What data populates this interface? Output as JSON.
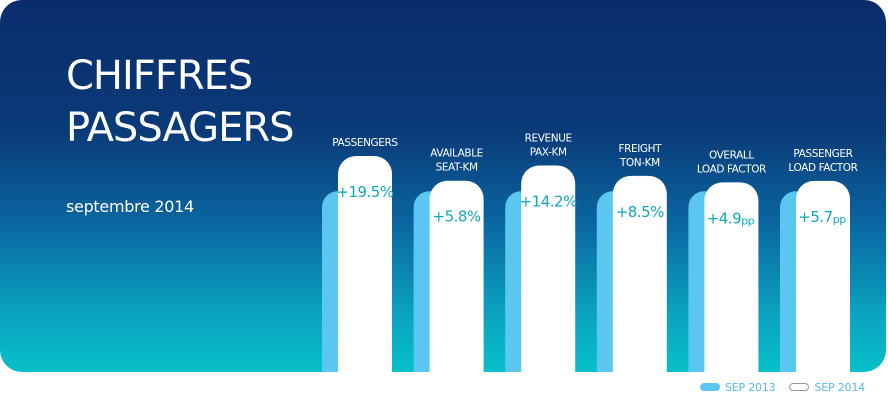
{
  "header": {
    "title_line1": "CHIFFRES",
    "title_line2": "PASSAGERS",
    "subtitle": "septembre 2014"
  },
  "legend": {
    "series_2013": "SEP 2013",
    "series_2014": "SEP 2014"
  },
  "colors": {
    "sep_2013": "#5bc7f0",
    "sep_2014": "#ffffff",
    "change_text": "#11a8b8",
    "label_text": "#ffffff"
  },
  "chart_data": {
    "type": "bar",
    "title": "CHIFFRES PASSAGERS",
    "subtitle": "septembre 2014",
    "categories": [
      [
        "PASSENGERS"
      ],
      [
        "AVAILABLE",
        "SEAT-KM"
      ],
      [
        "REVENUE",
        "PAX-KM"
      ],
      [
        "FREIGHT",
        "TON-KM"
      ],
      [
        "OVERALL",
        "LOAD FACTOR"
      ],
      [
        "PASSENGER",
        "LOAD FACTOR"
      ]
    ],
    "changes": [
      {
        "value": "+19.5%",
        "unit": ""
      },
      {
        "value": "+5.8%",
        "unit": ""
      },
      {
        "value": "+14.2%",
        "unit": ""
      },
      {
        "value": "+8.5%",
        "unit": ""
      },
      {
        "value": "+4.9",
        "unit": "pp"
      },
      {
        "value": "+5.7",
        "unit": "pp"
      }
    ],
    "series": [
      {
        "name": "SEP 2013",
        "values": [
          100,
          100,
          100,
          100,
          100,
          100
        ]
      },
      {
        "name": "SEP 2014",
        "values": [
          119.5,
          105.8,
          114.2,
          108.5,
          104.9,
          105.7
        ]
      }
    ],
    "ylim": [
      0,
      125
    ],
    "legend_position": "bottom-right",
    "grid": false
  }
}
